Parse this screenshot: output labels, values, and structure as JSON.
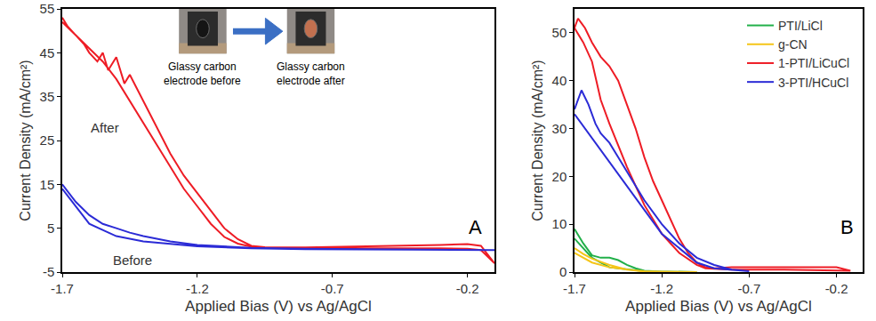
{
  "chart_data": [
    {
      "type": "line",
      "panel_label": "A",
      "x_label": "Applied Bias (V) vs Ag/AgCl",
      "y_label": "Current Density (mA/cm²)",
      "xlim": [
        -1.7,
        -0.1
      ],
      "xticks": [
        -1.7,
        -1.2,
        -0.7,
        -0.2
      ],
      "ylim": [
        -5,
        55
      ],
      "yticks": [
        -5,
        5,
        15,
        25,
        35,
        45,
        55
      ],
      "grid": false,
      "legend": "none",
      "inset_captions": [
        [
          "Glassy carbon",
          "electrode before"
        ],
        [
          "Glassy carbon",
          "electrode after"
        ]
      ],
      "series": [
        {
          "name": "After",
          "color": "#ee1c25",
          "x": [
            -1.7,
            -1.68,
            -1.65,
            -1.62,
            -1.6,
            -1.57,
            -1.55,
            -1.53,
            -1.5,
            -1.47,
            -1.45,
            -1.4,
            -1.35,
            -1.3,
            -1.25,
            -1.2,
            -1.15,
            -1.1,
            -1.05,
            -1.0,
            -0.95,
            -0.9,
            -0.8,
            -0.7,
            -0.6,
            -0.5,
            -0.4,
            -0.3,
            -0.2,
            -0.15,
            -0.1,
            -0.15,
            -0.2,
            -0.3,
            -0.5,
            -0.7,
            -0.9,
            -1.0,
            -1.05,
            -1.1,
            -1.15,
            -1.2,
            -1.25,
            -1.3,
            -1.35,
            -1.4,
            -1.45,
            -1.5,
            -1.55,
            -1.6,
            -1.65,
            -1.7
          ],
          "values": [
            53,
            51,
            49,
            47,
            45,
            43,
            45,
            41,
            44,
            38,
            40,
            34,
            28,
            22,
            17,
            13,
            9,
            5,
            2.5,
            1,
            0.7,
            0.6,
            0.6,
            0.7,
            0.8,
            0.9,
            1,
            1.2,
            1.4,
            1,
            -3,
            0,
            0.3,
            0.4,
            0.4,
            0.4,
            0.5,
            0.8,
            1.5,
            3,
            6,
            10,
            14,
            19,
            24,
            29,
            34,
            39,
            43,
            46,
            49,
            52
          ]
        },
        {
          "name": "Before",
          "color": "#2b2bd6",
          "x": [
            -1.7,
            -1.65,
            -1.6,
            -1.55,
            -1.5,
            -1.45,
            -1.4,
            -1.3,
            -1.2,
            -1.1,
            -1.0,
            -0.8,
            -0.6,
            -0.4,
            -0.2,
            -0.1,
            -0.4,
            -0.8,
            -1.0,
            -1.2,
            -1.4,
            -1.5,
            -1.6,
            -1.7
          ],
          "values": [
            15,
            11,
            8,
            6,
            5,
            4,
            3.2,
            2,
            1.2,
            0.8,
            0.5,
            0.3,
            0.2,
            0.1,
            0.1,
            0,
            0.1,
            0.2,
            0.4,
            0.9,
            2,
            3.2,
            6,
            14
          ]
        }
      ]
    },
    {
      "type": "line",
      "panel_label": "B",
      "x_label": "Applied Bias (V) vs Ag/AgCl",
      "y_label": "Current Density (mA/cm²)",
      "xlim": [
        -1.7,
        -0.05
      ],
      "xticks": [
        -1.7,
        -1.2,
        -0.7,
        -0.2
      ],
      "ylim": [
        0,
        55
      ],
      "yticks": [
        0,
        10,
        20,
        30,
        40,
        50
      ],
      "grid": false,
      "legend": "upper right",
      "series": [
        {
          "name": "PTI/LiCl",
          "color": "#22b04a",
          "x": [
            -1.7,
            -1.65,
            -1.6,
            -1.55,
            -1.5,
            -1.45,
            -1.4,
            -1.35,
            -1.3,
            -1.2,
            -1.0,
            -1.3,
            -1.5,
            -1.6,
            -1.7
          ],
          "values": [
            9,
            6,
            3.5,
            3,
            3,
            2.5,
            1.5,
            0.8,
            0.3,
            0.1,
            0,
            0.2,
            1,
            3,
            7
          ]
        },
        {
          "name": "g-CN",
          "color": "#f5c518",
          "x": [
            -1.7,
            -1.65,
            -1.6,
            -1.5,
            -1.4,
            -1.3,
            -1.2,
            -1.0,
            -1.3,
            -1.5,
            -1.6,
            -1.7
          ],
          "values": [
            5,
            3.8,
            2.8,
            1.5,
            0.5,
            0.2,
            0.1,
            0,
            0.1,
            1,
            2,
            4
          ]
        },
        {
          "name": "1-PTI/LiCuCl",
          "color": "#ee1c25",
          "x": [
            -1.7,
            -1.68,
            -1.66,
            -1.64,
            -1.6,
            -1.55,
            -1.5,
            -1.45,
            -1.4,
            -1.35,
            -1.3,
            -1.25,
            -1.2,
            -1.15,
            -1.1,
            -1.05,
            -1.0,
            -0.95,
            -0.9,
            -0.8,
            -0.6,
            -0.4,
            -0.2,
            -0.12,
            -0.5,
            -0.8,
            -0.95,
            -1.0,
            -1.1,
            -1.15,
            -1.2,
            -1.3,
            -1.4,
            -1.5,
            -1.55,
            -1.6,
            -1.65,
            -1.7
          ],
          "values": [
            51,
            53,
            52,
            51,
            48,
            45,
            43,
            40,
            35,
            30,
            24,
            19,
            15,
            11,
            7,
            4,
            2,
            1,
            0.8,
            1,
            1,
            1,
            1,
            0.3,
            0.5,
            0.5,
            0.8,
            1.5,
            4,
            6,
            8,
            14,
            22,
            31,
            36,
            44,
            48,
            51
          ]
        },
        {
          "name": "3-PTI/HCuCl",
          "color": "#2b2bd6",
          "x": [
            -1.7,
            -1.68,
            -1.66,
            -1.62,
            -1.58,
            -1.55,
            -1.5,
            -1.45,
            -1.4,
            -1.3,
            -1.2,
            -1.1,
            -1.0,
            -0.9,
            -0.8,
            -0.7,
            -0.9,
            -1.0,
            -1.1,
            -1.2,
            -1.3,
            -1.4,
            -1.5,
            -1.6,
            -1.7
          ],
          "values": [
            34,
            36,
            38,
            35,
            31,
            29,
            27,
            24,
            21,
            15,
            10,
            6,
            3,
            1.5,
            0.5,
            0.2,
            0.8,
            2,
            5,
            8,
            13,
            18,
            23,
            28,
            33
          ]
        }
      ]
    }
  ]
}
